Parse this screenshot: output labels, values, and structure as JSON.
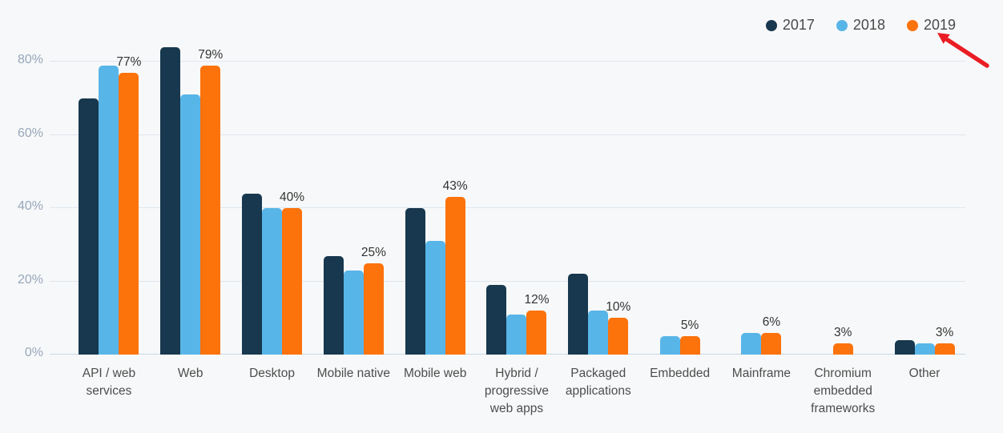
{
  "chart_data": {
    "type": "bar",
    "title": "",
    "categories": [
      "API / web services",
      "Web",
      "Desktop",
      "Mobile native",
      "Mobile web",
      "Hybrid / progressive web apps",
      "Packaged applications",
      "Embedded",
      "Mainframe",
      "Chromium embedded frameworks",
      "Other"
    ],
    "series": [
      {
        "name": "2017",
        "color": "#17384e",
        "values": [
          70,
          84,
          44,
          27,
          40,
          19,
          22,
          null,
          null,
          null,
          4
        ]
      },
      {
        "name": "2018",
        "color": "#58b5e8",
        "values": [
          79,
          71,
          40,
          23,
          31,
          11,
          12,
          5,
          6,
          null,
          3
        ]
      },
      {
        "name": "2019",
        "color": "#fc720b",
        "values": [
          77,
          79,
          40,
          25,
          43,
          12,
          10,
          5,
          6,
          3,
          3
        ]
      }
    ],
    "labeled_series": "2019",
    "value_labels": [
      "77%",
      "79%",
      "40%",
      "25%",
      "43%",
      "12%",
      "10%",
      "5%",
      "6%",
      "3%",
      "3%"
    ],
    "xlabel": "",
    "ylabel": "",
    "y_ticks": [
      "0%",
      "20%",
      "40%",
      "60%",
      "80%"
    ],
    "ylim": [
      0,
      80
    ],
    "grid": true,
    "legend_position": "top-right"
  },
  "annotation": {
    "type": "red-arrow",
    "points_to": "2019",
    "color": "#ea1c24"
  },
  "colors": {
    "background": "#f7f8f9",
    "gridline": "#dde6f0",
    "baseline": "#c9d8e6",
    "y_tick_text": "#97a7bb",
    "x_label_text": "#4d4d4d",
    "value_label_text": "#333333",
    "legend_text": "#4a4a4a"
  }
}
